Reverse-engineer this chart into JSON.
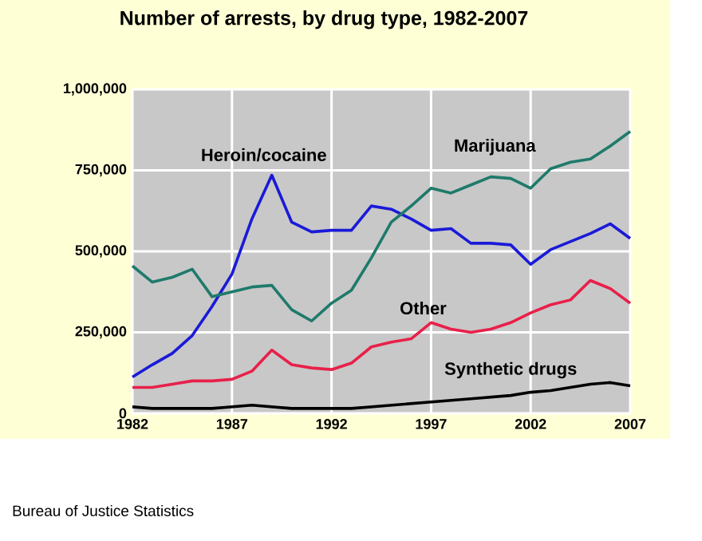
{
  "chart_data": {
    "type": "line",
    "title": "Number of arrests, by drug type, 1982-2007",
    "x": [
      1982,
      1983,
      1984,
      1985,
      1986,
      1987,
      1988,
      1989,
      1990,
      1991,
      1992,
      1993,
      1994,
      1995,
      1996,
      1997,
      1998,
      1999,
      2000,
      2001,
      2002,
      2003,
      2004,
      2005,
      2006,
      2007
    ],
    "series": [
      {
        "name": "Heroin/cocaine",
        "color": "#1a1ad8",
        "values": [
          112000,
          150000,
          185000,
          240000,
          330000,
          430000,
          600000,
          735000,
          590000,
          560000,
          565000,
          565000,
          640000,
          630000,
          600000,
          565000,
          570000,
          525000,
          525000,
          520000,
          460000,
          505000,
          530000,
          555000,
          585000,
          540000
        ]
      },
      {
        "name": "Marijuana",
        "color": "#1f7a6a",
        "values": [
          455000,
          405000,
          420000,
          445000,
          360000,
          375000,
          390000,
          395000,
          320000,
          285000,
          340000,
          380000,
          480000,
          590000,
          640000,
          695000,
          680000,
          705000,
          730000,
          725000,
          695000,
          755000,
          775000,
          785000,
          825000,
          870000
        ]
      },
      {
        "name": "Other",
        "color": "#e8204a",
        "values": [
          80000,
          80000,
          90000,
          100000,
          100000,
          105000,
          130000,
          195000,
          150000,
          140000,
          135000,
          155000,
          205000,
          220000,
          230000,
          280000,
          260000,
          250000,
          260000,
          280000,
          310000,
          335000,
          350000,
          410000,
          385000,
          340000
        ]
      },
      {
        "name": "Synthetic drugs",
        "color": "#000000",
        "values": [
          20000,
          15000,
          15000,
          15000,
          15000,
          20000,
          25000,
          20000,
          15000,
          15000,
          15000,
          15000,
          20000,
          25000,
          30000,
          35000,
          40000,
          45000,
          50000,
          55000,
          65000,
          70000,
          80000,
          90000,
          95000,
          85000
        ]
      }
    ],
    "xlim": [
      1982,
      2007
    ],
    "xticks": [
      1982,
      1987,
      1992,
      1997,
      2002,
      2007
    ],
    "ylim": [
      0,
      1000000
    ],
    "yticks": [
      {
        "value": 0,
        "label": "0"
      },
      {
        "value": 250000,
        "label": "250,000"
      },
      {
        "value": 500000,
        "label": "500,000"
      },
      {
        "value": 750000,
        "label": "750,000"
      },
      {
        "value": 1000000,
        "label": "1,000,000"
      }
    ],
    "grid": true,
    "legend": false,
    "marker": "none",
    "line_style": "solid",
    "annotations": [
      "Bureau of Justice Statistics"
    ]
  }
}
